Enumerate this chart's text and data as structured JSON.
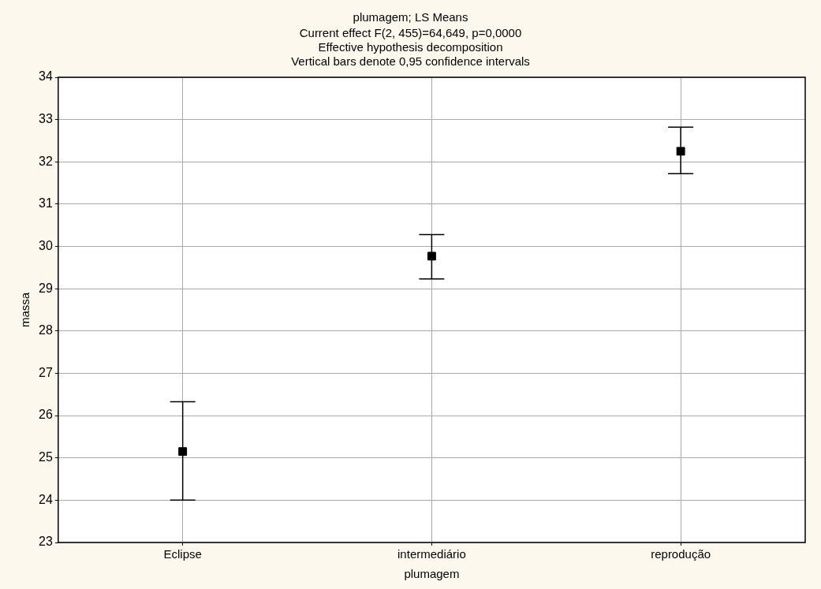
{
  "chart_data": {
    "type": "scatter",
    "title": "plumagem; LS Means",
    "subtitle": "Current effect F(2, 455)=64,649, p=0,0000\nEffective hypothesis decomposition\nVertical bars denote 0,95 confidence intervals",
    "xlabel": "plumagem",
    "ylabel": "massa",
    "categories": [
      "Eclipse",
      "intermediário",
      "reprodução"
    ],
    "values": [
      25.15,
      29.77,
      32.25
    ],
    "errors": [
      [
        24.0,
        26.33
      ],
      [
        29.23,
        30.28
      ],
      [
        31.72,
        32.82
      ]
    ],
    "color": "#000000",
    "marker": "square",
    "ylim": [
      23,
      34
    ],
    "yticks": [
      23,
      24,
      25,
      26,
      27,
      28,
      29,
      30,
      31,
      32,
      33,
      34
    ],
    "grid": true
  }
}
